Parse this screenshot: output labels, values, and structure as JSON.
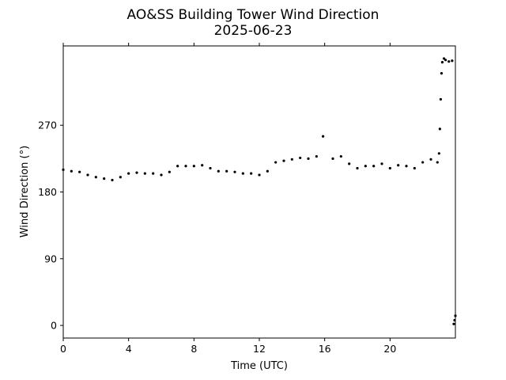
{
  "chart_data": {
    "type": "scatter",
    "title": "AO&SS Building Tower Wind Direction",
    "subtitle": "2025-06-23",
    "xlabel": "Time (UTC)",
    "ylabel": "Wind Direction (°)",
    "xlim": [
      0,
      24
    ],
    "ylim": [
      -17,
      377
    ],
    "x_ticks": [
      0,
      4,
      8,
      12,
      16,
      20
    ],
    "y_ticks": [
      0,
      90,
      180,
      270
    ],
    "grid": false,
    "legend": "none",
    "marker_color": "#000000",
    "series": [
      {
        "x": [
          0.0,
          0.5,
          1.0,
          1.5,
          2.0,
          2.5,
          3.0,
          3.5,
          4.0,
          4.5,
          5.0,
          5.5,
          6.0,
          6.5,
          7.0,
          7.5,
          8.0,
          8.5,
          9.0,
          9.5,
          10.0,
          10.5,
          11.0,
          11.5,
          12.0,
          12.5,
          13.0,
          13.5,
          14.0,
          14.5,
          15.0,
          15.5,
          15.9,
          16.5,
          17.0,
          17.5,
          18.0,
          18.5,
          19.0,
          19.5,
          20.0,
          20.5,
          21.0,
          21.5,
          22.0,
          22.5,
          22.9,
          23.0,
          23.05,
          23.1,
          23.15,
          23.2,
          23.3,
          23.4,
          23.6,
          23.8,
          23.9,
          23.95,
          24.0
        ],
        "y": [
          210,
          208,
          207,
          203,
          200,
          198,
          196,
          200,
          205,
          206,
          205,
          205,
          203,
          207,
          215,
          215,
          215,
          216,
          212,
          208,
          208,
          207,
          205,
          205,
          203,
          208,
          220,
          222,
          224,
          226,
          225,
          228,
          255,
          225,
          228,
          218,
          212,
          215,
          215,
          218,
          212,
          216,
          215,
          212,
          220,
          224,
          220,
          232,
          265,
          305,
          340,
          355,
          360,
          358,
          356,
          357,
          2,
          7,
          13
        ]
      }
    ]
  }
}
